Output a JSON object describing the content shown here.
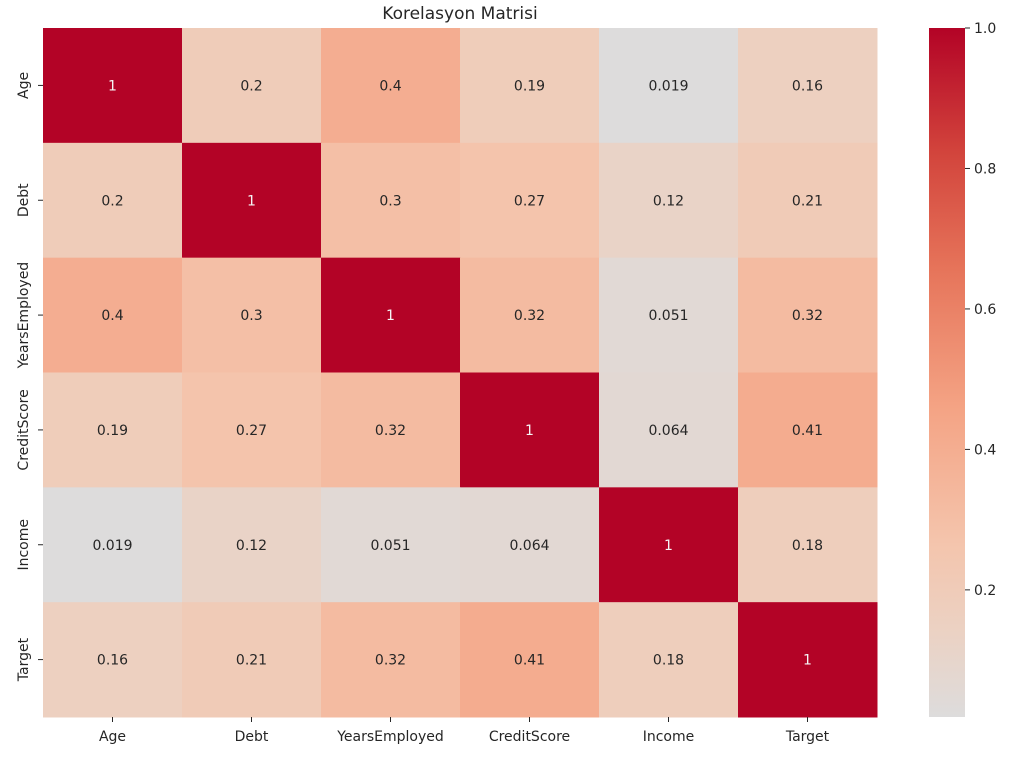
{
  "chart_data": {
    "type": "heatmap",
    "title": "Korelasyon Matrisi",
    "xlabel": "",
    "ylabel": "",
    "categories": [
      "Age",
      "Debt",
      "YearsEmployed",
      "CreditScore",
      "Income",
      "Target"
    ],
    "rows": [
      "Age",
      "Debt",
      "YearsEmployed",
      "CreditScore",
      "Income",
      "Target"
    ],
    "values": [
      [
        1,
        0.2,
        0.4,
        0.19,
        0.019,
        0.16
      ],
      [
        0.2,
        1,
        0.3,
        0.27,
        0.12,
        0.21
      ],
      [
        0.4,
        0.3,
        1,
        0.32,
        0.051,
        0.32
      ],
      [
        0.19,
        0.27,
        0.32,
        1,
        0.064,
        0.41
      ],
      [
        0.019,
        0.12,
        0.051,
        0.064,
        1,
        0.18
      ],
      [
        0.16,
        0.21,
        0.32,
        0.41,
        0.18,
        1
      ]
    ],
    "cell_labels": [
      [
        "1",
        "0.2",
        "0.4",
        "0.19",
        "0.019",
        "0.16"
      ],
      [
        "0.2",
        "1",
        "0.3",
        "0.27",
        "0.12",
        "0.21"
      ],
      [
        "0.4",
        "0.3",
        "1",
        "0.32",
        "0.051",
        "0.32"
      ],
      [
        "0.19",
        "0.27",
        "0.32",
        "1",
        "0.064",
        "0.41"
      ],
      [
        "0.019",
        "0.12",
        "0.051",
        "0.064",
        "1",
        "0.18"
      ],
      [
        "0.16",
        "0.21",
        "0.32",
        "0.41",
        "0.18",
        "1"
      ]
    ],
    "colormap": "coolwarm (upper half)",
    "color_range": [
      0.019,
      1.0
    ],
    "colorbar": {
      "ticks": [
        0.2,
        0.4,
        0.6,
        0.8,
        1.0
      ],
      "tick_labels": [
        "0.2",
        "0.4",
        "0.6",
        "0.8",
        "1.0"
      ]
    },
    "grid": false,
    "legend": "colorbar-right"
  }
}
